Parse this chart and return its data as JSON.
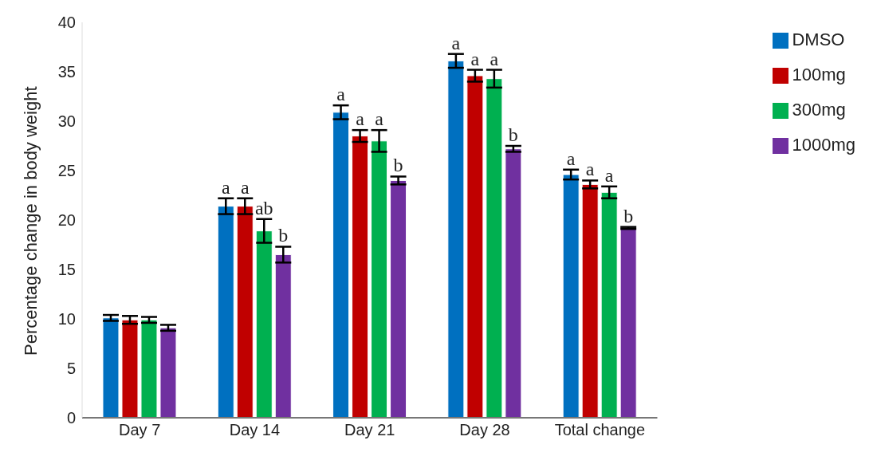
{
  "chart_data": {
    "type": "bar",
    "ylabel": "Percentage change in body weight",
    "categories": [
      "Day 7",
      "Day 14",
      "Day 21",
      "Day 28",
      "Total change"
    ],
    "series": [
      {
        "name": "DMSO",
        "color": "#0070c0",
        "values": [
          10.1,
          21.4,
          30.9,
          36.1,
          24.6
        ],
        "errors": [
          0.3,
          0.8,
          0.7,
          0.7,
          0.5
        ],
        "value_labels": [
          null,
          "a",
          "a",
          "a",
          "a"
        ]
      },
      {
        "name": "100mg",
        "color": "#c00000",
        "values": [
          9.9,
          21.4,
          28.5,
          34.6,
          23.6
        ],
        "errors": [
          0.4,
          0.8,
          0.6,
          0.6,
          0.4
        ],
        "value_labels": [
          null,
          "a",
          "a",
          "a",
          "a"
        ]
      },
      {
        "name": "300mg",
        "color": "#00b050",
        "values": [
          9.9,
          18.9,
          28.0,
          34.3,
          22.8
        ],
        "errors": [
          0.3,
          1.2,
          1.1,
          0.9,
          0.6
        ],
        "value_labels": [
          null,
          "ab",
          "a",
          "a",
          "a"
        ]
      },
      {
        "name": "1000mg",
        "color": "#7030a0",
        "values": [
          9.1,
          16.5,
          24.0,
          27.2,
          19.2
        ],
        "errors": [
          0.3,
          0.8,
          0.4,
          0.3,
          0.1
        ],
        "value_labels": [
          null,
          "b",
          "b",
          "b",
          "b"
        ]
      }
    ],
    "ylim": [
      0,
      40
    ],
    "yticks": [
      0,
      5,
      10,
      15,
      20,
      25,
      30,
      35,
      40
    ],
    "grid": false,
    "legend": "top right"
  }
}
